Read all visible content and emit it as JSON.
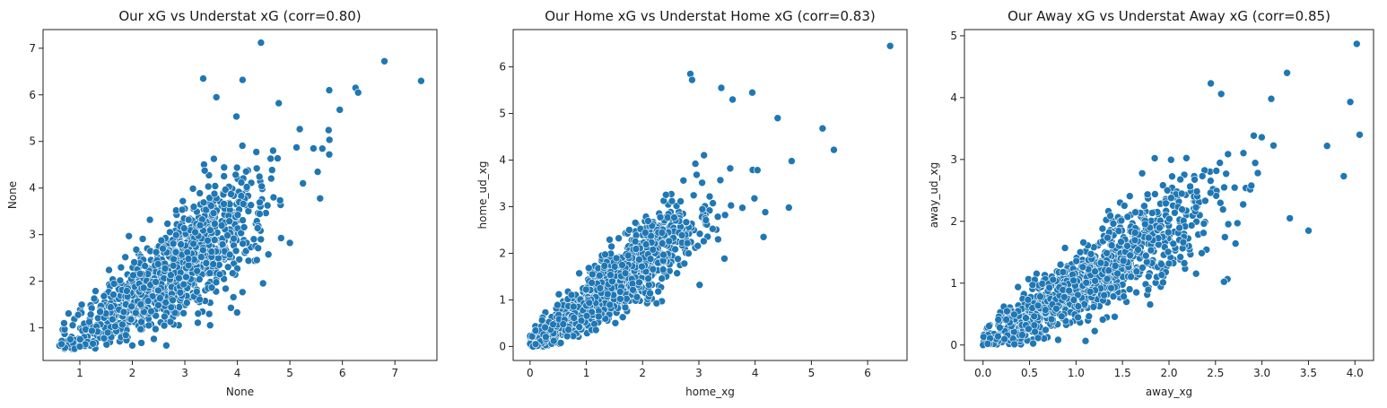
{
  "colors": {
    "points": "#1f77b4",
    "background": "#ffffff",
    "axes": "#222222"
  },
  "chart_data": [
    {
      "type": "scatter",
      "title": "Our xG vs Understat xG (corr=0.80)",
      "xlabel": "None",
      "ylabel": "None",
      "xlim": [
        0.3,
        7.8
      ],
      "ylim": [
        0.3,
        7.4
      ],
      "xticks": [
        1,
        2,
        3,
        4,
        5,
        6,
        7
      ],
      "yticks": [
        1,
        2,
        3,
        4,
        5,
        6,
        7
      ],
      "grid": false,
      "corr": 0.8,
      "x_range": [
        0.6,
        7.5
      ],
      "y_range": [
        0.55,
        7.1
      ],
      "n_points": 1100,
      "points": [
        [
          4.45,
          7.12
        ],
        [
          6.8,
          6.72
        ],
        [
          7.5,
          6.3
        ],
        [
          6.25,
          6.15
        ],
        [
          6.3,
          6.05
        ],
        [
          5.75,
          6.1
        ],
        [
          3.35,
          6.35
        ],
        [
          4.1,
          6.32
        ],
        [
          5.95,
          5.68
        ],
        [
          3.6,
          5.95
        ],
        [
          5.75,
          4.72
        ],
        [
          5.25,
          4.1
        ],
        [
          5.45,
          4.85
        ],
        [
          0.65,
          0.65
        ],
        [
          0.9,
          0.55
        ],
        [
          1.0,
          0.6
        ],
        [
          0.7,
          1.1
        ]
      ]
    },
    {
      "type": "scatter",
      "title": "Our Home xG vs Understat Home xG (corr=0.83)",
      "xlabel": "home_xg",
      "ylabel": "home_ud_xg",
      "xlim": [
        -0.3,
        6.7
      ],
      "ylim": [
        -0.3,
        6.8
      ],
      "xticks": [
        0,
        1,
        2,
        3,
        4,
        5,
        6
      ],
      "yticks": [
        0,
        1,
        2,
        3,
        4,
        5,
        6
      ],
      "grid": false,
      "corr": 0.83,
      "x_range": [
        0.0,
        6.4
      ],
      "y_range": [
        0.0,
        6.45
      ],
      "n_points": 1100,
      "points": [
        [
          6.4,
          6.45
        ],
        [
          2.85,
          5.85
        ],
        [
          2.88,
          5.72
        ],
        [
          3.4,
          5.55
        ],
        [
          3.6,
          5.3
        ],
        [
          3.95,
          5.45
        ],
        [
          4.4,
          4.9
        ],
        [
          5.2,
          4.68
        ],
        [
          5.4,
          4.22
        ],
        [
          4.65,
          3.98
        ],
        [
          4.6,
          2.98
        ],
        [
          4.15,
          2.35
        ],
        [
          0.05,
          0.0
        ],
        [
          0.1,
          0.05
        ]
      ]
    },
    {
      "type": "scatter",
      "title": "Our Away xG vs Understat Away xG (corr=0.85)",
      "xlabel": "away_xg",
      "ylabel": "away_ud_xg",
      "xlim": [
        -0.2,
        4.2
      ],
      "ylim": [
        -0.25,
        5.1
      ],
      "xticks": [
        "0.0",
        "0.5",
        "1.0",
        "1.5",
        "2.0",
        "2.5",
        "3.0",
        "3.5",
        "4.0"
      ],
      "yticks": [
        0,
        1,
        2,
        3,
        4,
        5
      ],
      "grid": false,
      "corr": 0.85,
      "x_range": [
        0.0,
        4.05
      ],
      "y_range": [
        0.0,
        4.87
      ],
      "n_points": 1100,
      "points": [
        [
          4.02,
          4.87
        ],
        [
          3.27,
          4.4
        ],
        [
          2.45,
          4.23
        ],
        [
          3.95,
          3.93
        ],
        [
          4.05,
          3.4
        ],
        [
          3.1,
          3.98
        ],
        [
          3.88,
          2.73
        ],
        [
          3.5,
          1.85
        ],
        [
          3.3,
          2.05
        ],
        [
          3.7,
          3.22
        ],
        [
          0.0,
          0.0
        ],
        [
          0.05,
          0.02
        ]
      ]
    }
  ]
}
